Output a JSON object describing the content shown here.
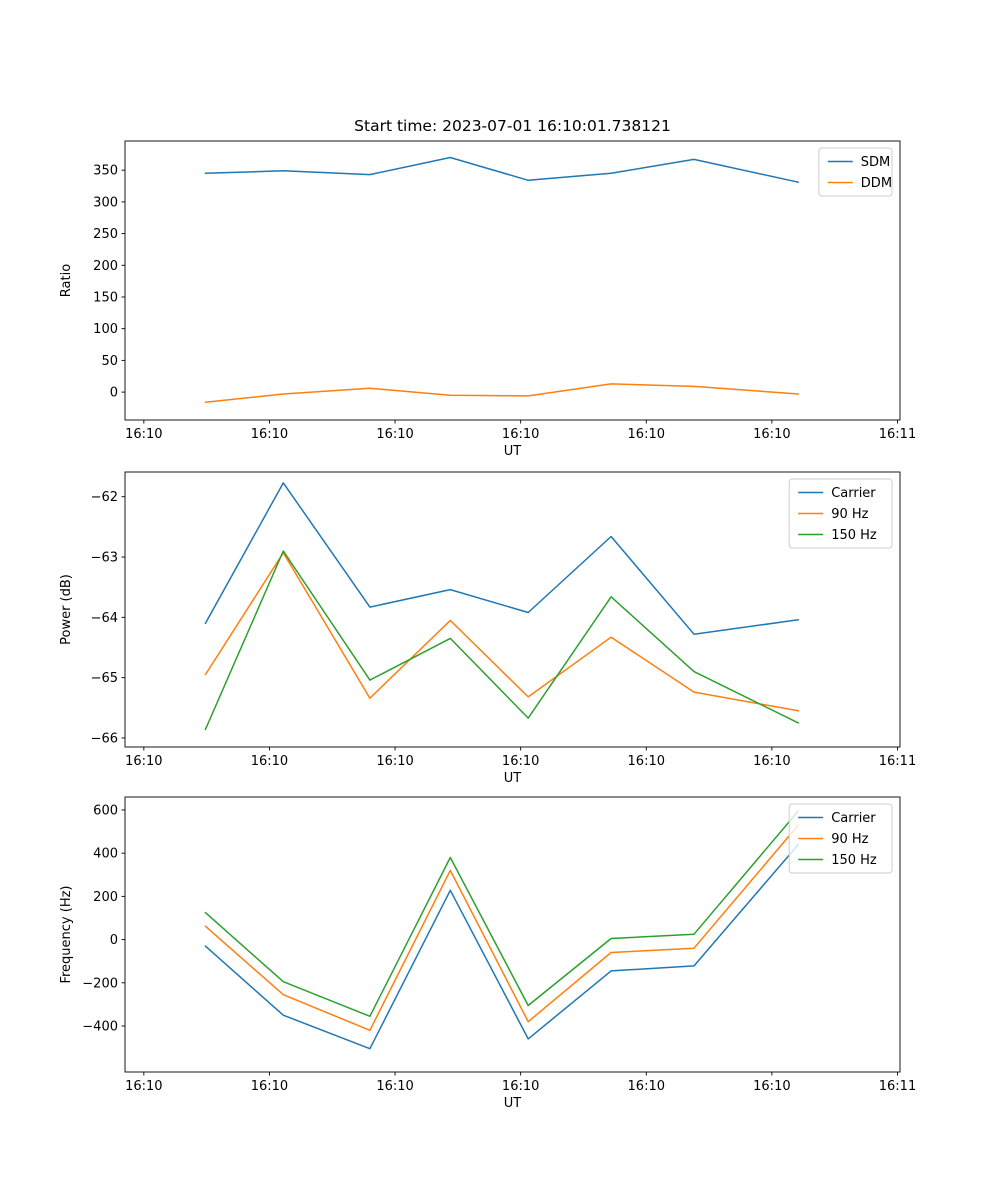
{
  "figure": {
    "background": "#ffffff"
  },
  "chart_data": [
    {
      "type": "line",
      "title": "Start time: 2023-07-01 16:10:01.738121",
      "xlabel": "UT",
      "ylabel": "Ratio",
      "x": [
        4.9,
        11.1,
        18.0,
        24.4,
        30.6,
        37.2,
        43.8,
        52.1
      ],
      "xlim": [
        -1.5,
        60.2
      ],
      "ylim": [
        -44,
        396
      ],
      "yticks": [
        0,
        50,
        100,
        150,
        200,
        250,
        300,
        350
      ],
      "xticks": {
        "values": [
          0,
          10,
          20,
          30,
          40,
          50,
          60
        ],
        "labels": [
          "16:10",
          "16:10",
          "16:10",
          "16:10",
          "16:10",
          "16:10",
          "16:11"
        ]
      },
      "grid": false,
      "legend_position": "upper right",
      "series": [
        {
          "name": "SDM",
          "color": "#1f77b4",
          "values": [
            345,
            349,
            343,
            370,
            334,
            345,
            367,
            331
          ]
        },
        {
          "name": "DDM",
          "color": "#ff7f0e",
          "values": [
            -16,
            -3,
            6,
            -5,
            -6,
            13,
            9,
            -3
          ]
        }
      ]
    },
    {
      "type": "line",
      "title": "",
      "xlabel": "UT",
      "ylabel": "Power (dB)",
      "x": [
        4.9,
        11.1,
        18.0,
        24.4,
        30.6,
        37.2,
        43.8,
        52.1
      ],
      "xlim": [
        -1.5,
        60.2
      ],
      "ylim": [
        -66.15,
        -61.59
      ],
      "yticks": [
        -66,
        -65,
        -64,
        -63,
        -62
      ],
      "xticks": {
        "values": [
          0,
          10,
          20,
          30,
          40,
          50,
          60
        ],
        "labels": [
          "16:10",
          "16:10",
          "16:10",
          "16:10",
          "16:10",
          "16:10",
          "16:11"
        ]
      },
      "grid": false,
      "legend_position": "upper right",
      "series": [
        {
          "name": "Carrier",
          "color": "#1f77b4",
          "values": [
            -64.1,
            -61.77,
            -63.83,
            -63.54,
            -63.92,
            -62.66,
            -64.28,
            -64.04
          ]
        },
        {
          "name": "90 Hz",
          "color": "#ff7f0e",
          "values": [
            -64.95,
            -62.93,
            -65.34,
            -64.05,
            -65.32,
            -64.33,
            -65.24,
            -65.55
          ]
        },
        {
          "name": "150 Hz",
          "color": "#2ca02c",
          "values": [
            -65.86,
            -62.9,
            -65.04,
            -64.35,
            -65.67,
            -63.66,
            -64.9,
            -65.75
          ]
        }
      ]
    },
    {
      "type": "line",
      "title": "",
      "xlabel": "UT",
      "ylabel": "Frequency (Hz)",
      "x": [
        4.9,
        11.1,
        18.0,
        24.4,
        30.6,
        37.2,
        43.8,
        52.1
      ],
      "xlim": [
        -1.5,
        60.2
      ],
      "ylim": [
        -613,
        660
      ],
      "yticks": [
        -400,
        -200,
        0,
        200,
        400,
        600
      ],
      "xticks": {
        "values": [
          0,
          10,
          20,
          30,
          40,
          50,
          60
        ],
        "labels": [
          "16:10",
          "16:10",
          "16:10",
          "16:10",
          "16:10",
          "16:10",
          "16:11"
        ]
      },
      "grid": false,
      "legend_position": "upper right",
      "series": [
        {
          "name": "Carrier",
          "color": "#1f77b4",
          "values": [
            -30,
            -350,
            -505,
            228,
            -460,
            -145,
            -122,
            440
          ]
        },
        {
          "name": "90 Hz",
          "color": "#ff7f0e",
          "values": [
            62,
            -255,
            -420,
            320,
            -380,
            -60,
            -40,
            530
          ]
        },
        {
          "name": "150 Hz",
          "color": "#2ca02c",
          "values": [
            125,
            -195,
            -355,
            380,
            -305,
            5,
            25,
            595
          ]
        }
      ]
    }
  ]
}
